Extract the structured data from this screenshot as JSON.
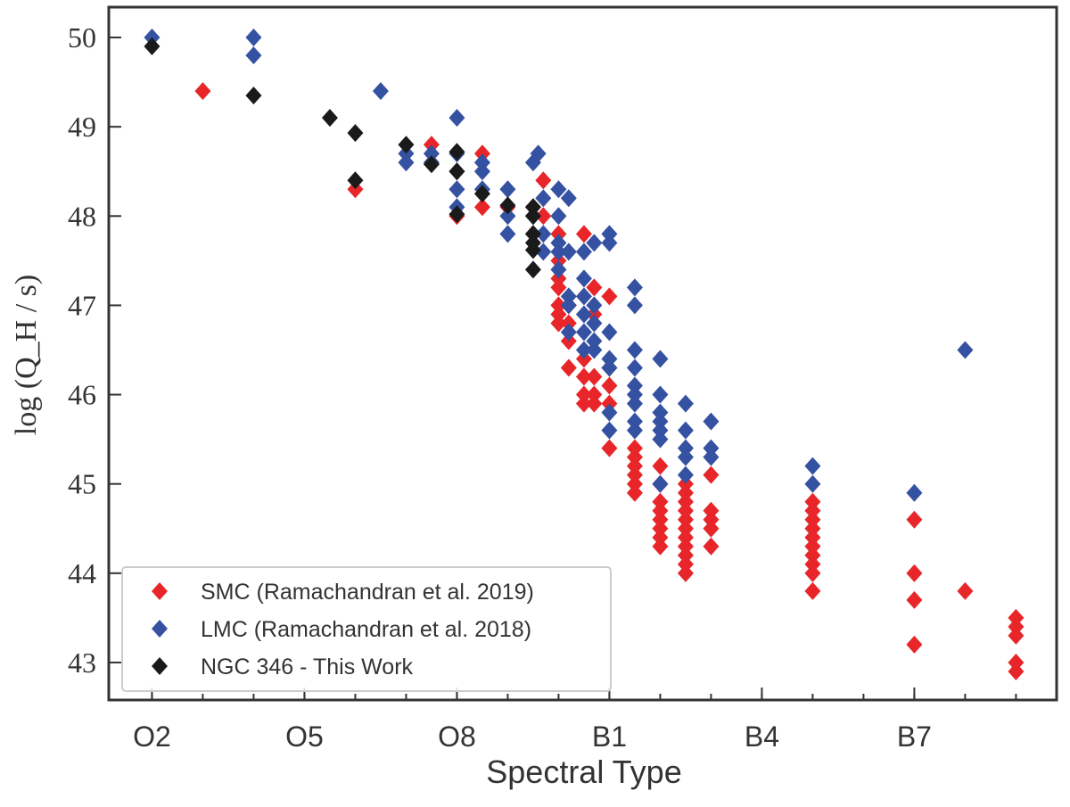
{
  "chart_data": {
    "type": "scatter",
    "xlabel": "Spectral Type",
    "ylabel": "log (Q_H / s)",
    "xlim": [
      1.15,
      19.8
    ],
    "ylim": [
      42.58,
      50.34
    ],
    "xticks": [
      {
        "value": 2,
        "label": "O2"
      },
      {
        "value": 5,
        "label": "O5"
      },
      {
        "value": 8,
        "label": "O8"
      },
      {
        "value": 11,
        "label": "B1"
      },
      {
        "value": 14,
        "label": "B4"
      },
      {
        "value": 17,
        "label": "B7"
      }
    ],
    "x_minor_ticks": [
      2,
      3,
      4,
      5,
      6,
      7,
      8,
      9,
      10,
      11,
      12,
      13,
      14,
      15,
      16,
      17,
      18,
      19
    ],
    "yticks": [
      43,
      44,
      45,
      46,
      47,
      48,
      49,
      50
    ],
    "legend": "lower left",
    "series": [
      {
        "name": "SMC (Ramachandran et al. 2019)",
        "color": "#e8262a",
        "x": [
          3,
          6,
          7.5,
          8,
          8.5,
          8.5,
          9,
          9.5,
          9.5,
          9.7,
          9.7,
          10,
          10,
          10,
          10,
          10,
          10,
          10,
          10.2,
          10.2,
          10.2,
          10.2,
          10.5,
          10.5,
          10.5,
          10.5,
          10.5,
          10.7,
          10.7,
          10.7,
          10.7,
          10.7,
          11,
          11,
          11,
          11,
          11,
          11.5,
          11.5,
          11.5,
          11.5,
          11.5,
          11.5,
          12,
          12,
          12,
          12,
          12,
          12,
          12,
          12,
          12.5,
          12.5,
          12.5,
          12.5,
          12.5,
          12.5,
          12.5,
          12.5,
          12.5,
          12.5,
          12.5,
          13,
          13,
          13,
          13,
          13,
          15,
          15,
          15,
          15,
          15,
          15,
          15,
          15,
          15,
          15,
          17,
          17,
          17,
          17,
          18,
          19,
          19,
          19,
          19,
          19
        ],
        "y": [
          49.4,
          48.3,
          48.8,
          48.0,
          48.7,
          48.1,
          48.1,
          48.1,
          47.8,
          48.4,
          48.0,
          47.8,
          47.5,
          47.3,
          47.2,
          47.0,
          46.9,
          46.8,
          46.6,
          46.3,
          46.8,
          47.0,
          47.8,
          46.4,
          46.2,
          45.9,
          46.0,
          47.2,
          46.9,
          46.0,
          46.2,
          45.9,
          47.1,
          46.3,
          46.1,
          45.9,
          45.4,
          45.4,
          45.2,
          45.0,
          44.9,
          45.1,
          45.3,
          45.2,
          45.0,
          44.8,
          44.6,
          44.5,
          44.3,
          44.4,
          44.7,
          45.0,
          44.8,
          44.6,
          44.4,
          44.2,
          44.0,
          44.1,
          44.5,
          44.7,
          44.9,
          44.3,
          45.1,
          44.7,
          44.6,
          44.5,
          44.3,
          44.8,
          44.7,
          44.6,
          44.5,
          44.4,
          44.3,
          44.2,
          44.1,
          44.0,
          43.8,
          44.6,
          44.0,
          43.7,
          43.2,
          43.8,
          43.5,
          43.4,
          43.3,
          43.0,
          42.9
        ]
      },
      {
        "name": "LMC (Ramachandran et al. 2018)",
        "color": "#3451a2",
        "x": [
          2,
          4,
          4,
          6.5,
          7,
          7,
          7.5,
          7.5,
          8,
          8,
          8,
          8,
          8,
          8.5,
          8.5,
          8.5,
          9,
          9,
          9,
          9.5,
          9.5,
          9.6,
          9.7,
          9.7,
          9.7,
          10,
          10,
          10,
          10,
          10,
          10.2,
          10.2,
          10.2,
          10.2,
          10.2,
          10.5,
          10.5,
          10.5,
          10.5,
          10.5,
          10.5,
          10.7,
          10.7,
          10.7,
          10.7,
          10.7,
          11,
          11,
          11,
          11,
          11,
          11,
          11,
          11.5,
          11.5,
          11.5,
          11.5,
          11.5,
          11.5,
          11.5,
          11.5,
          11.5,
          12,
          12,
          12,
          12,
          12,
          12,
          12,
          12.5,
          12.5,
          12.5,
          12.5,
          12.5,
          13,
          13,
          13,
          15,
          15,
          17,
          18
        ],
        "y": [
          50.0,
          50.0,
          49.8,
          49.4,
          48.7,
          48.6,
          48.7,
          48.6,
          49.1,
          48.7,
          48.5,
          48.3,
          48.1,
          48.6,
          48.5,
          48.3,
          48.3,
          48.0,
          47.8,
          48.6,
          48.0,
          48.7,
          48.2,
          47.8,
          47.6,
          48.3,
          48.0,
          47.6,
          47.4,
          47.7,
          48.2,
          47.6,
          47.1,
          46.7,
          47.0,
          47.6,
          47.3,
          47.1,
          46.9,
          46.7,
          46.5,
          47.7,
          47.0,
          46.6,
          46.5,
          46.8,
          47.8,
          47.7,
          46.7,
          46.4,
          46.3,
          45.8,
          45.6,
          47.2,
          47.0,
          46.5,
          46.3,
          46.1,
          45.9,
          45.7,
          46.0,
          45.6,
          46.4,
          46.0,
          45.8,
          45.6,
          45.5,
          45.0,
          45.7,
          45.9,
          45.6,
          45.4,
          45.3,
          45.1,
          45.7,
          45.4,
          45.3,
          45.2,
          45.0,
          44.9,
          46.5
        ]
      },
      {
        "name": "NGC 346 - This Work",
        "color": "#1a1a1a",
        "x": [
          2,
          4,
          5.5,
          6,
          6,
          7,
          7.5,
          8,
          8,
          8,
          8.5,
          9,
          9.5,
          9.5,
          9.5,
          9.5,
          9.5,
          9.5
        ],
        "y": [
          49.9,
          49.35,
          49.1,
          48.93,
          48.4,
          48.8,
          48.58,
          48.72,
          48.5,
          48.02,
          48.25,
          48.12,
          48.1,
          48.0,
          47.8,
          47.7,
          47.62,
          47.4
        ]
      }
    ]
  }
}
